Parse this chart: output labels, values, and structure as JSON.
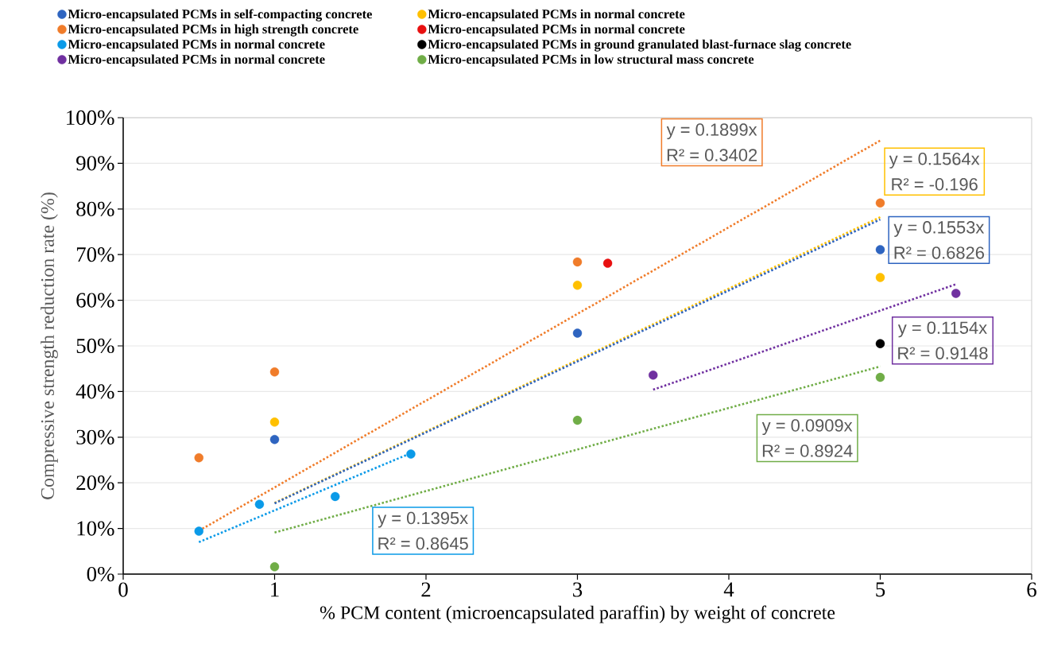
{
  "chart_data": {
    "type": "scatter",
    "xlabel": "% PCM content (microencapsulated paraffin) by weight of concrete",
    "ylabel": "Compressive strength reduction rate (%)",
    "xlim": [
      0,
      6
    ],
    "ylim": [
      0,
      100
    ],
    "xticks": [
      0,
      1,
      2,
      3,
      4,
      5,
      6
    ],
    "yticks": [
      {
        "value": 0,
        "label": "0%"
      },
      {
        "value": 10,
        "label": "10%"
      },
      {
        "value": 20,
        "label": "20%"
      },
      {
        "value": 30,
        "label": "30%"
      },
      {
        "value": 40,
        "label": "40%"
      },
      {
        "value": 50,
        "label": "50%"
      },
      {
        "value": 60,
        "label": "60%"
      },
      {
        "value": 70,
        "label": "70%"
      },
      {
        "value": 80,
        "label": "80%"
      },
      {
        "value": 90,
        "label": "90%"
      },
      {
        "value": 100,
        "label": "100%"
      }
    ],
    "grid": "y",
    "legend": "top",
    "marker": "circle",
    "series": [
      {
        "name": "Micro-encapsulated PCMs in self-compacting concrete",
        "color": "#2e64c0",
        "x": [
          1,
          3,
          5
        ],
        "values": [
          29.5,
          52.8,
          71.1
        ]
      },
      {
        "name": "Micro-encapsulated PCMs in high strength concrete",
        "color": "#f07c2a",
        "x": [
          0.5,
          1,
          3,
          5
        ],
        "values": [
          25.5,
          44.3,
          68.4,
          81.3
        ]
      },
      {
        "name": "Micro-encapsulated PCMs in normal concrete",
        "color": "#0a9ae8",
        "x": [
          0.5,
          0.9,
          1.4,
          1.9
        ],
        "values": [
          9.4,
          15.3,
          17.0,
          26.3
        ]
      },
      {
        "name": "Micro-encapsulated PCMs in normal concrete",
        "color": "#7030a0",
        "x": [
          3.5,
          5.5
        ],
        "values": [
          43.6,
          61.5
        ]
      },
      {
        "name": "Micro-encapsulated PCMs in normal concrete",
        "color": "#ffc000",
        "x": [
          1,
          3,
          5
        ],
        "values": [
          33.3,
          63.3,
          65.0
        ]
      },
      {
        "name": "Micro-encapsulated PCMs in normal concrete",
        "color": "#e81010",
        "x": [
          3.2
        ],
        "values": [
          68.1
        ]
      },
      {
        "name": "Micro-encapsulated PCMs in ground granulated blast-furnace slag concrete",
        "color": "#000000",
        "x": [
          5
        ],
        "values": [
          50.5
        ]
      },
      {
        "name": "Micro-encapsulated PCMs in low structural mass concrete",
        "color": "#70ad47",
        "x": [
          1,
          3,
          5
        ],
        "values": [
          1.6,
          33.7,
          43.1
        ]
      },
      {
        "type": "line",
        "marker": "none",
        "line_style": "dotted",
        "color": "#f07c2a",
        "x": [
          0.5,
          5
        ],
        "values": [
          9.5,
          95.0
        ]
      },
      {
        "type": "line",
        "marker": "none",
        "line_style": "dotted",
        "color": "#ffc000",
        "x": [
          1,
          5
        ],
        "values": [
          15.6,
          78.2
        ]
      },
      {
        "type": "line",
        "marker": "none",
        "line_style": "dotted",
        "color": "#2e64c0",
        "x": [
          1,
          5
        ],
        "values": [
          15.5,
          77.7
        ]
      },
      {
        "type": "line",
        "marker": "none",
        "line_style": "dotted",
        "color": "#0a9ae8",
        "x": [
          0.5,
          1.9
        ],
        "values": [
          7.0,
          26.5
        ]
      },
      {
        "type": "line",
        "marker": "none",
        "line_style": "dotted",
        "color": "#7030a0",
        "x": [
          3.5,
          5.5
        ],
        "values": [
          40.4,
          63.5
        ]
      },
      {
        "type": "line",
        "marker": "none",
        "line_style": "dotted",
        "color": "#70ad47",
        "x": [
          1,
          5
        ],
        "values": [
          9.1,
          45.5
        ]
      }
    ],
    "annotations": [
      "y = 0.1899x",
      "R² = 0.3402",
      "y = 0.1564x",
      "R² = -0.196",
      "y = 0.1553x",
      "R² = 0.6826",
      "y = 0.1395x",
      "R² = 0.8645",
      "y = 0.1154x",
      "R² = 0.9148",
      "y = 0.0909x",
      "R² = 0.8924"
    ]
  }
}
